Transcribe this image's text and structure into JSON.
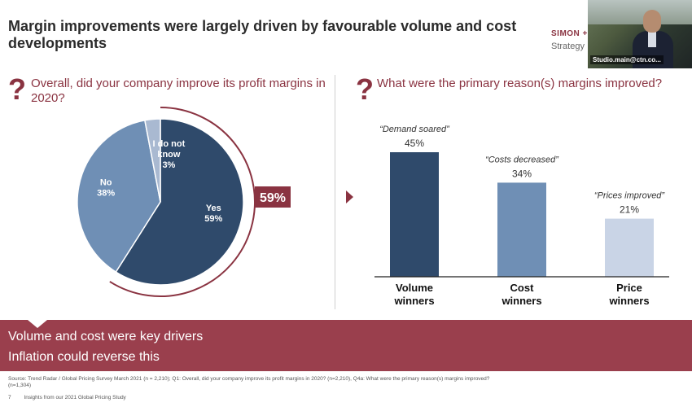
{
  "title": "Margin improvements were largely driven by favourable volume and cost developments",
  "brand": "SIMON +",
  "brand_sub": "Strategy",
  "video_label": "Studio.main@ctn.co...",
  "left_question": "Overall, did your company improve its profit margins in 2020?",
  "right_question": "What were the primary reason(s) margins improved?",
  "question_mark": "?",
  "callout": "59%",
  "banner_lines": [
    "Volume and cost were key drivers",
    "Inflation could reverse this"
  ],
  "source": "Source: Trend Radar / Global Pricing Survey March 2021 (n = 2,210); Q1: Overall, did your company improve its profit margins in 2020? (n=2,210), Q4a: What were the primary reason(s) margins improved? (n=1,304)",
  "footer": "Insights from our 2021 Global Pricing Study",
  "page_num": "7",
  "colors": {
    "accent": "#8a3341",
    "banner": "#9a3f4d",
    "yes": "#2f4a6b",
    "no": "#6f8fb5",
    "dont_know": "#a9b9d1",
    "bar1": "#2f4a6b",
    "bar2": "#6f8fb5",
    "bar3": "#c9d4e6"
  },
  "chart_data": [
    {
      "type": "pie",
      "title": "Overall, did your company improve its profit margins in 2020?",
      "slices": [
        {
          "label_lines": [
            "Yes"
          ],
          "value": 59,
          "display": "59%"
        },
        {
          "label_lines": [
            "No"
          ],
          "value": 38,
          "display": "38%"
        },
        {
          "label_lines": [
            "I do not",
            "know"
          ],
          "value": 3,
          "display": "3%"
        }
      ]
    },
    {
      "type": "bar",
      "title": "What were the primary reason(s) margins improved?",
      "categories": [
        [
          "Volume",
          "winners"
        ],
        [
          "Cost",
          "winners"
        ],
        [
          "Price",
          "winners"
        ]
      ],
      "quotes": [
        "“Demand soared”",
        "“Costs decreased”",
        "“Prices improved”"
      ],
      "values": [
        45,
        34,
        21
      ],
      "value_labels": [
        "45%",
        "34%",
        "21%"
      ],
      "ylim": [
        0,
        50
      ]
    }
  ]
}
